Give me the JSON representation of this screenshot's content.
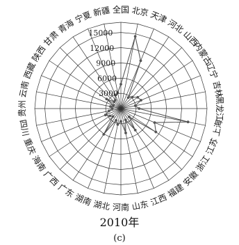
{
  "chart_data": {
    "type": "radar",
    "categories": [
      "全国",
      "北京",
      "天津",
      "河北",
      "山西",
      "内蒙古",
      "辽宁",
      "吉林",
      "黑龙江",
      "上海",
      "江苏",
      "浙江",
      "安徽",
      "福建",
      "江西",
      "山东",
      "河南",
      "湖北",
      "湖南",
      "广东",
      "广西",
      "海南",
      "重庆",
      "四川",
      "贵州",
      "云南",
      "西藏",
      "陕西",
      "甘肃",
      "青海",
      "宁夏",
      "新疆"
    ],
    "values": [
      4800,
      14500,
      10200,
      2600,
      3200,
      4000,
      4300,
      2900,
      3600,
      13500,
      7200,
      8300,
      2300,
      5100,
      2400,
      4900,
      2500,
      3200,
      2500,
      6100,
      2200,
      2600,
      3300,
      2400,
      1700,
      2100,
      1600,
      3400,
      1900,
      2000,
      2900,
      3200
    ],
    "rlim": [
      0,
      17000
    ],
    "tick_values": [
      3000,
      6000,
      9000,
      12000,
      15000
    ],
    "tick_labels": [
      "3000",
      "6000",
      "9000",
      "12000",
      "15000"
    ],
    "grid": true,
    "title": "2010年",
    "subtitle": "(c)"
  }
}
